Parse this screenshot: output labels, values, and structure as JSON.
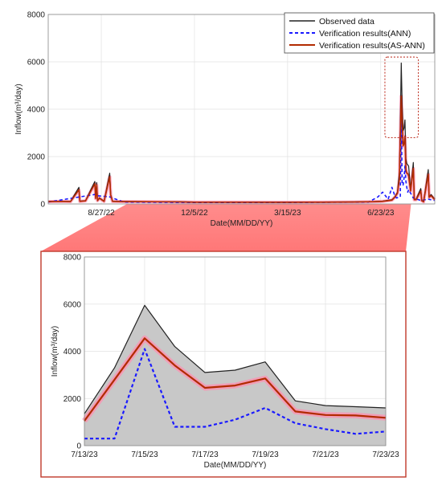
{
  "chart_data": [
    {
      "type": "line",
      "title": "",
      "xlabel": "Date(MM/DD/YY)",
      "ylabel": "Inflow(m³/day)",
      "ylim": [
        0,
        8000
      ],
      "yticks": [
        0,
        2000,
        4000,
        6000,
        8000
      ],
      "xlim": [
        "2022-07-01",
        "2023-08-20"
      ],
      "xticks": [
        "8/27/22",
        "12/5/22",
        "3/15/23",
        "6/23/23"
      ],
      "xtick_dates": [
        "2022-08-27",
        "2022-12-05",
        "2023-03-15",
        "2023-06-23"
      ],
      "grid": true,
      "legend_position": "top-right",
      "legend": [
        "Observed data",
        "Verification results(ANN)",
        "Verification results(AS-ANN)"
      ],
      "colors": {
        "observed": "#222222",
        "ann": "#1a1aff",
        "as_ann": "#b22a00",
        "band": "#ff8fb0",
        "zoom": "#c0392b"
      },
      "zoom_range": [
        "2023-07-13",
        "2023-07-23"
      ],
      "series": [
        {
          "name": "Observed data",
          "x": [
            "2022-07-01",
            "2022-07-15",
            "2022-07-25",
            "2022-08-03",
            "2022-08-04",
            "2022-08-10",
            "2022-08-20",
            "2022-08-21",
            "2022-08-22",
            "2022-08-23",
            "2022-08-25",
            "2022-08-30",
            "2022-09-05",
            "2022-09-06",
            "2022-09-08",
            "2022-09-20",
            "2022-10-15",
            "2022-11-20",
            "2022-12-05",
            "2023-01-20",
            "2023-03-01",
            "2023-03-15",
            "2023-04-20",
            "2023-05-25",
            "2023-06-15",
            "2023-06-25",
            "2023-07-05",
            "2023-07-08",
            "2023-07-11",
            "2023-07-13",
            "2023-07-14",
            "2023-07-15",
            "2023-07-16",
            "2023-07-17",
            "2023-07-18",
            "2023-07-19",
            "2023-07-20",
            "2023-07-21",
            "2023-07-22",
            "2023-07-23",
            "2023-07-25",
            "2023-07-28",
            "2023-07-29",
            "2023-07-31",
            "2023-08-05",
            "2023-08-06",
            "2023-08-08",
            "2023-08-13",
            "2023-08-14",
            "2023-08-16",
            "2023-08-20"
          ],
          "values": [
            110,
            120,
            110,
            700,
            120,
            140,
            950,
            250,
            900,
            150,
            260,
            120,
            1300,
            400,
            120,
            110,
            100,
            90,
            80,
            80,
            75,
            75,
            80,
            85,
            100,
            120,
            180,
            300,
            500,
            1350,
            3300,
            5950,
            4200,
            3100,
            3200,
            3550,
            1900,
            1700,
            1650,
            1600,
            600,
            1750,
            200,
            200,
            650,
            150,
            100,
            1450,
            300,
            400,
            200
          ]
        },
        {
          "name": "Verification results(ANN)",
          "x": [
            "2022-07-01",
            "2022-08-04",
            "2022-08-20",
            "2022-08-22",
            "2022-09-05",
            "2022-09-20",
            "2022-12-05",
            "2023-03-15",
            "2023-06-10",
            "2023-06-20",
            "2023-06-25",
            "2023-07-01",
            "2023-07-05",
            "2023-07-08",
            "2023-07-10",
            "2023-07-13",
            "2023-07-14",
            "2023-07-15",
            "2023-07-16",
            "2023-07-17",
            "2023-07-18",
            "2023-07-19",
            "2023-07-20",
            "2023-07-21",
            "2023-07-22",
            "2023-07-23",
            "2023-07-28",
            "2023-08-05",
            "2023-08-13",
            "2023-08-20"
          ],
          "values": [
            80,
            300,
            400,
            350,
            300,
            80,
            60,
            60,
            80,
            300,
            500,
            200,
            700,
            350,
            250,
            300,
            300,
            4100,
            800,
            800,
            1100,
            1600,
            950,
            700,
            500,
            600,
            250,
            150,
            200,
            150
          ]
        },
        {
          "name": "Verification results(AS-ANN)",
          "x": [
            "2022-07-01",
            "2022-07-15",
            "2022-07-25",
            "2022-08-03",
            "2022-08-04",
            "2022-08-10",
            "2022-08-20",
            "2022-08-21",
            "2022-08-22",
            "2022-08-23",
            "2022-08-25",
            "2022-08-30",
            "2022-09-05",
            "2022-09-06",
            "2022-09-08",
            "2022-09-20",
            "2022-10-15",
            "2022-11-20",
            "2022-12-05",
            "2023-01-20",
            "2023-03-01",
            "2023-03-15",
            "2023-04-20",
            "2023-05-25",
            "2023-06-15",
            "2023-06-25",
            "2023-07-05",
            "2023-07-08",
            "2023-07-11",
            "2023-07-13",
            "2023-07-14",
            "2023-07-15",
            "2023-07-16",
            "2023-07-17",
            "2023-07-18",
            "2023-07-19",
            "2023-07-20",
            "2023-07-21",
            "2023-07-22",
            "2023-07-23",
            "2023-07-25",
            "2023-07-28",
            "2023-07-29",
            "2023-07-31",
            "2023-08-05",
            "2023-08-06",
            "2023-08-08",
            "2023-08-13",
            "2023-08-14",
            "2023-08-16",
            "2023-08-20"
          ],
          "values": [
            100,
            110,
            100,
            600,
            110,
            130,
            850,
            230,
            800,
            140,
            240,
            110,
            1150,
            380,
            110,
            100,
            95,
            85,
            75,
            75,
            70,
            70,
            75,
            80,
            95,
            110,
            160,
            280,
            450,
            1050,
            2800,
            4550,
            3400,
            2450,
            2550,
            2850,
            1450,
            1300,
            1280,
            1180,
            550,
            1500,
            180,
            180,
            550,
            140,
            90,
            1250,
            280,
            350,
            180
          ]
        }
      ]
    },
    {
      "type": "line",
      "title": "",
      "xlabel": "Date(MM/DD/YY)",
      "ylabel": "Inflow(m³/day)",
      "ylim": [
        0,
        8000
      ],
      "yticks": [
        0,
        2000,
        4000,
        6000,
        8000
      ],
      "xlim": [
        "2023-07-13",
        "2023-07-23"
      ],
      "xticks": [
        "7/13/23",
        "7/15/23",
        "7/17/23",
        "7/19/23",
        "7/21/23",
        "7/23/23"
      ],
      "xtick_dates": [
        "2023-07-13",
        "2023-07-15",
        "2023-07-17",
        "2023-07-19",
        "2023-07-21",
        "2023-07-23"
      ],
      "grid": true,
      "observed_display": "shaded-area",
      "series": [
        {
          "name": "Observed data",
          "x": [
            "2023-07-13",
            "2023-07-14",
            "2023-07-15",
            "2023-07-16",
            "2023-07-17",
            "2023-07-18",
            "2023-07-19",
            "2023-07-20",
            "2023-07-21",
            "2023-07-22",
            "2023-07-23"
          ],
          "values": [
            1350,
            3300,
            5950,
            4200,
            3100,
            3200,
            3550,
            1900,
            1700,
            1650,
            1600
          ]
        },
        {
          "name": "Verification results(ANN)",
          "x": [
            "2023-07-13",
            "2023-07-14",
            "2023-07-15",
            "2023-07-16",
            "2023-07-17",
            "2023-07-18",
            "2023-07-19",
            "2023-07-20",
            "2023-07-21",
            "2023-07-22",
            "2023-07-23"
          ],
          "values": [
            300,
            300,
            4100,
            800,
            800,
            1100,
            1600,
            950,
            700,
            500,
            600
          ]
        },
        {
          "name": "Verification results(AS-ANN)",
          "x": [
            "2023-07-13",
            "2023-07-14",
            "2023-07-15",
            "2023-07-16",
            "2023-07-17",
            "2023-07-18",
            "2023-07-19",
            "2023-07-20",
            "2023-07-21",
            "2023-07-22",
            "2023-07-23"
          ],
          "values": [
            1050,
            2800,
            4550,
            3400,
            2450,
            2550,
            2850,
            1450,
            1300,
            1280,
            1180
          ]
        }
      ]
    }
  ]
}
